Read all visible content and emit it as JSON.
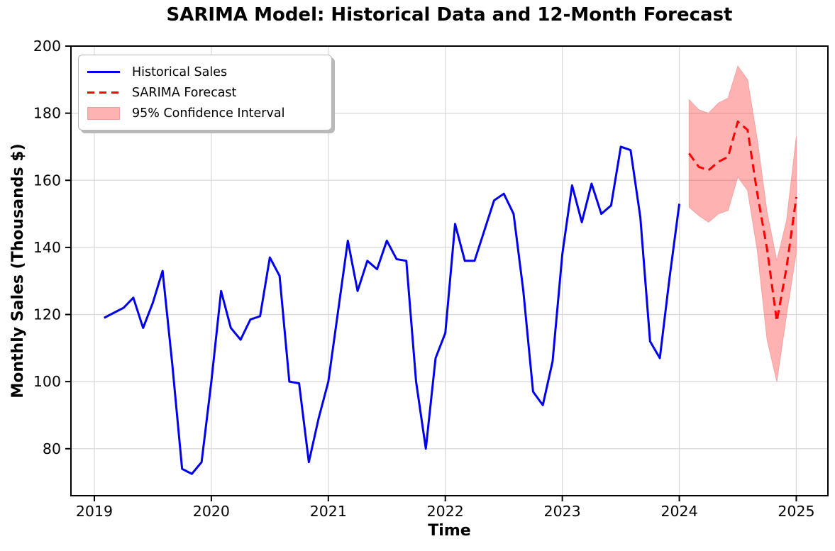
{
  "title": "SARIMA Model: Historical Data and 12-Month Forecast",
  "legend": {
    "position": "upper left",
    "historical_label": "Historical Sales",
    "forecast_label": "SARIMA Forecast",
    "ci_label": "95% Confidence Interval"
  },
  "chart_data": {
    "type": "line",
    "title": "SARIMA Model: Historical Data and 12-Month Forecast",
    "xlabel": "Time",
    "ylabel": "Monthly Sales (Thousands $)",
    "x_ticks": [
      2019,
      2020,
      2021,
      2022,
      2023,
      2024,
      2025
    ],
    "y_ticks": [
      80,
      100,
      120,
      140,
      160,
      180,
      200
    ],
    "xlim": [
      2018.8,
      2025.27
    ],
    "ylim": [
      66,
      200
    ],
    "grid": true,
    "colors": {
      "historical": "#0000ee",
      "forecast": "#ff0000",
      "ci_fill": "#ff0000",
      "ci_alpha": 0.3,
      "grid": "#d9d9d9",
      "spine": "#000000"
    },
    "series": [
      {
        "name": "Historical Sales",
        "style": "solid",
        "color": "#0000ee",
        "start": "2019-01",
        "freq": "monthly",
        "values": [
          119,
          120.5,
          122,
          125,
          116,
          123.5,
          133,
          105,
          74,
          72.5,
          76,
          100,
          127,
          116,
          112.5,
          118.5,
          119.5,
          137,
          131.5,
          100,
          99.5,
          76,
          89,
          100,
          121,
          142,
          127,
          136,
          133.5,
          142,
          136.5,
          136,
          100,
          80,
          107,
          114.5,
          147,
          136,
          136,
          145,
          154,
          156,
          150,
          127,
          97,
          93,
          106,
          138,
          158.5,
          147.5,
          159,
          150,
          152.5,
          170,
          169,
          149,
          112,
          107,
          131,
          153
        ]
      },
      {
        "name": "SARIMA Forecast",
        "style": "dashed",
        "color": "#ff0000",
        "start": "2024-01",
        "freq": "monthly",
        "values": [
          168,
          164,
          163,
          165.5,
          167,
          177.5,
          175,
          156,
          139.5,
          118,
          134,
          155
        ]
      },
      {
        "name": "95% Confidence Interval",
        "style": "band",
        "color": "#ff0000",
        "alpha": 0.3,
        "start": "2024-01",
        "freq": "monthly",
        "upper": [
          184,
          181,
          180,
          183,
          184.5,
          194,
          190,
          172,
          150.5,
          136,
          148,
          173
        ],
        "lower": [
          152,
          149.5,
          147.5,
          150,
          151,
          161,
          157,
          139,
          112.5,
          100,
          120,
          138.5
        ]
      }
    ]
  }
}
